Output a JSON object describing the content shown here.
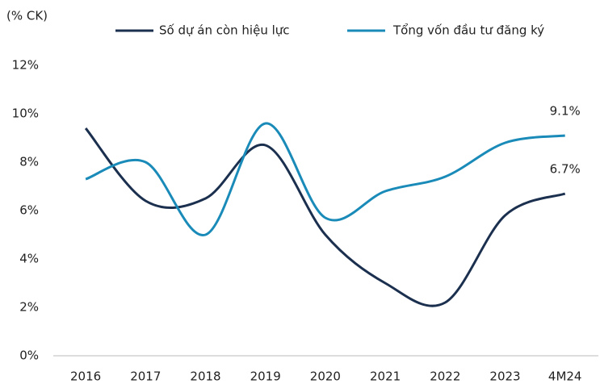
{
  "chart_data": {
    "type": "line",
    "y_label": "(% CK)",
    "categories": [
      "2016",
      "2017",
      "2018",
      "2019",
      "2020",
      "2021",
      "2022",
      "2023",
      "4M24"
    ],
    "series": [
      {
        "name": "Số dự án còn hiệu lực",
        "color": "#1b2f4e",
        "values": [
          9.4,
          6.4,
          6.5,
          8.7,
          5.0,
          3.0,
          2.2,
          5.8,
          6.7
        ],
        "value_labels": [
          null,
          null,
          null,
          null,
          null,
          null,
          null,
          null,
          "6.7%"
        ]
      },
      {
        "name": "Tổng vốn đầu tư đăng ký",
        "color": "#1a8bb8",
        "values": [
          7.3,
          8.0,
          5.0,
          9.6,
          5.7,
          6.8,
          7.4,
          8.8,
          9.1
        ],
        "value_labels": [
          null,
          null,
          null,
          null,
          null,
          null,
          null,
          null,
          "9.1%"
        ]
      }
    ],
    "ylim": [
      0,
      12
    ],
    "yticks": [
      {
        "value": 0,
        "label": "0%"
      },
      {
        "value": 2,
        "label": "2%"
      },
      {
        "value": 4,
        "label": "4%"
      },
      {
        "value": 6,
        "label": "6%"
      },
      {
        "value": 8,
        "label": "8%"
      },
      {
        "value": 10,
        "label": "10%"
      },
      {
        "value": 12,
        "label": "12%"
      }
    ],
    "legend": "top"
  }
}
